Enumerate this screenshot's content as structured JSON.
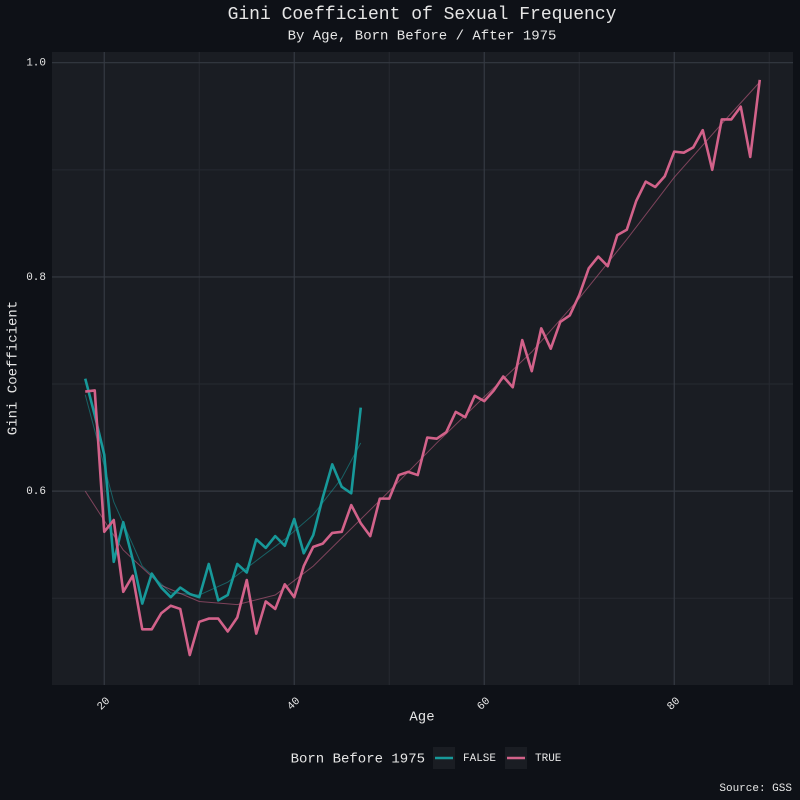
{
  "chart_data": {
    "type": "line",
    "title": "Gini Coefficient of Sexual Frequency",
    "subtitle": "By Age, Born Before / After 1975",
    "x_label": "Age",
    "y_label": "Gini Coefficient",
    "caption": "Source: GSS",
    "legend_title": "Born Before 1975",
    "legend": "bottom",
    "grid": true,
    "xlim": [
      14.5,
      92.5
    ],
    "ylim": [
      0.419,
      1.01
    ],
    "xticks": [
      20,
      40,
      60,
      80
    ],
    "yticks": [
      {
        "value": 0.6,
        "label": "0.6"
      },
      {
        "value": 0.8,
        "label": "0.8"
      },
      {
        "value": 1.0,
        "label": "1.0"
      }
    ],
    "xminor": [
      30,
      50,
      70,
      90
    ],
    "yminor": [
      0.5,
      0.7,
      0.9
    ],
    "series": [
      {
        "name": "FALSE",
        "color": "#17999a",
        "x": [
          18,
          19,
          20,
          21,
          22,
          23,
          24,
          25,
          26,
          27,
          28,
          29,
          30,
          31,
          32,
          33,
          34,
          35,
          36,
          37,
          38,
          39,
          40,
          41,
          42,
          43,
          44,
          45,
          46,
          47
        ],
        "values": [
          0.705,
          0.671,
          0.634,
          0.534,
          0.571,
          0.536,
          0.495,
          0.523,
          0.51,
          0.501,
          0.51,
          0.504,
          0.501,
          0.532,
          0.498,
          0.503,
          0.532,
          0.524,
          0.555,
          0.547,
          0.558,
          0.549,
          0.574,
          0.542,
          0.559,
          0.594,
          0.625,
          0.604,
          0.598,
          0.678
        ],
        "smooth_x": [
          18,
          21,
          24,
          27,
          30,
          33,
          36,
          39,
          42,
          45,
          47
        ],
        "smooth_values": [
          0.69,
          0.59,
          0.53,
          0.505,
          0.503,
          0.515,
          0.535,
          0.555,
          0.578,
          0.612,
          0.645
        ]
      },
      {
        "name": "TRUE",
        "color": "#d2628a",
        "x": [
          18,
          19,
          20,
          21,
          22,
          23,
          24,
          25,
          26,
          27,
          28,
          29,
          30,
          31,
          32,
          33,
          34,
          35,
          36,
          37,
          38,
          39,
          40,
          41,
          42,
          43,
          44,
          45,
          46,
          47,
          48,
          49,
          50,
          51,
          52,
          53,
          54,
          55,
          56,
          57,
          58,
          59,
          60,
          61,
          62,
          63,
          64,
          65,
          66,
          67,
          68,
          69,
          70,
          71,
          72,
          73,
          74,
          75,
          76,
          77,
          78,
          79,
          80,
          81,
          82,
          83,
          84,
          85,
          86,
          87,
          88,
          89
        ],
        "values": [
          0.693,
          0.694,
          0.562,
          0.573,
          0.506,
          0.521,
          0.471,
          0.471,
          0.486,
          0.493,
          0.49,
          0.447,
          0.478,
          0.481,
          0.481,
          0.469,
          0.482,
          0.517,
          0.467,
          0.497,
          0.49,
          0.513,
          0.501,
          0.53,
          0.548,
          0.551,
          0.561,
          0.562,
          0.587,
          0.57,
          0.558,
          0.593,
          0.593,
          0.615,
          0.618,
          0.615,
          0.65,
          0.649,
          0.655,
          0.674,
          0.669,
          0.689,
          0.684,
          0.694,
          0.707,
          0.697,
          0.741,
          0.712,
          0.752,
          0.733,
          0.758,
          0.764,
          0.783,
          0.808,
          0.819,
          0.81,
          0.839,
          0.844,
          0.871,
          0.889,
          0.884,
          0.894,
          0.917,
          0.916,
          0.921,
          0.937,
          0.9,
          0.947,
          0.947,
          0.959,
          0.912,
          0.984
        ],
        "smooth_x": [
          18,
          22,
          26,
          30,
          34,
          38,
          42,
          46,
          50,
          55,
          60,
          65,
          70,
          75,
          80,
          85,
          89
        ],
        "smooth_values": [
          0.6,
          0.545,
          0.512,
          0.497,
          0.494,
          0.503,
          0.53,
          0.565,
          0.6,
          0.645,
          0.688,
          0.73,
          0.78,
          0.835,
          0.893,
          0.943,
          0.982
        ]
      }
    ]
  }
}
